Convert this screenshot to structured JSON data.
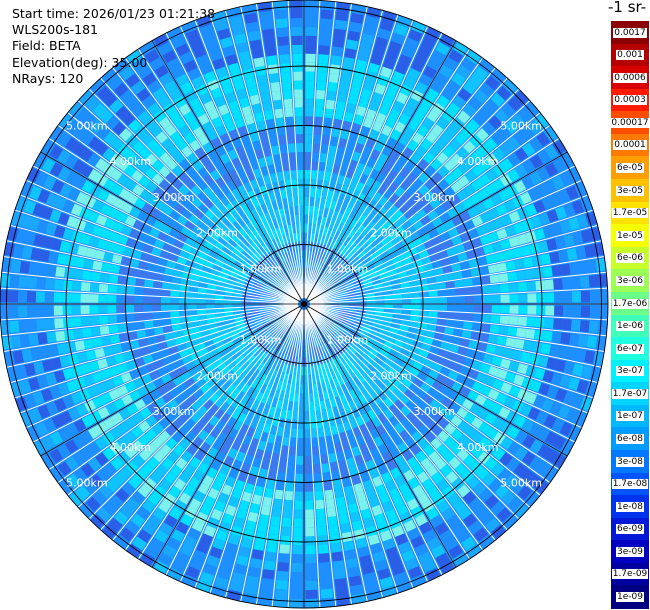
{
  "header": {
    "start_time": "Start time: 2026/01/23 01:21:38",
    "instrument": "WLS200s-181",
    "field": "Field: BETA",
    "elevation": "Elevation(deg): 35.00",
    "nrays": "NRays: 120"
  },
  "colorbar": {
    "units_label": "-1 sr-",
    "ticks": [
      "0.0017",
      "0.001",
      "0.0006",
      "0.0003",
      "0.00017",
      "0.0001",
      "6e-05",
      "3e-05",
      "1.7e-05",
      "1e-05",
      "6e-06",
      "3e-06",
      "1.7e-06",
      "1e-06",
      "6e-07",
      "3e-07",
      "1.7e-07",
      "1e-07",
      "6e-08",
      "3e-08",
      "1.7e-08",
      "1e-08",
      "6e-09",
      "3e-09",
      "1.7e-09",
      "1e-09"
    ],
    "colors": [
      "#8b0000",
      "#b40000",
      "#d90000",
      "#ff1a00",
      "#ff4d00",
      "#ff7a00",
      "#ff9e00",
      "#ffc000",
      "#ffe200",
      "#f4ff00",
      "#c8ff2a",
      "#9cff55",
      "#6bff8a",
      "#40ffb8",
      "#1fffe0",
      "#00f0ff",
      "#00d4ff",
      "#00b8ff",
      "#009cff",
      "#0078ff",
      "#0055ff",
      "#0033ee",
      "#0018d8",
      "#0000c0",
      "#0000a0",
      "#000080"
    ]
  },
  "ppi": {
    "range_rings_km": [
      1,
      2,
      3,
      4,
      5
    ],
    "range_labels": [
      "1.00km",
      "2.00km",
      "3.00km",
      "4.00km",
      "5.00km"
    ],
    "nrays": 120,
    "field_palette": [
      "#1e8fff",
      "#1aa8ff",
      "#10c4ff",
      "#00e0ff",
      "#1fffe0",
      "#3c78ee",
      "#2a5ee6",
      "#7df2ea"
    ]
  }
}
